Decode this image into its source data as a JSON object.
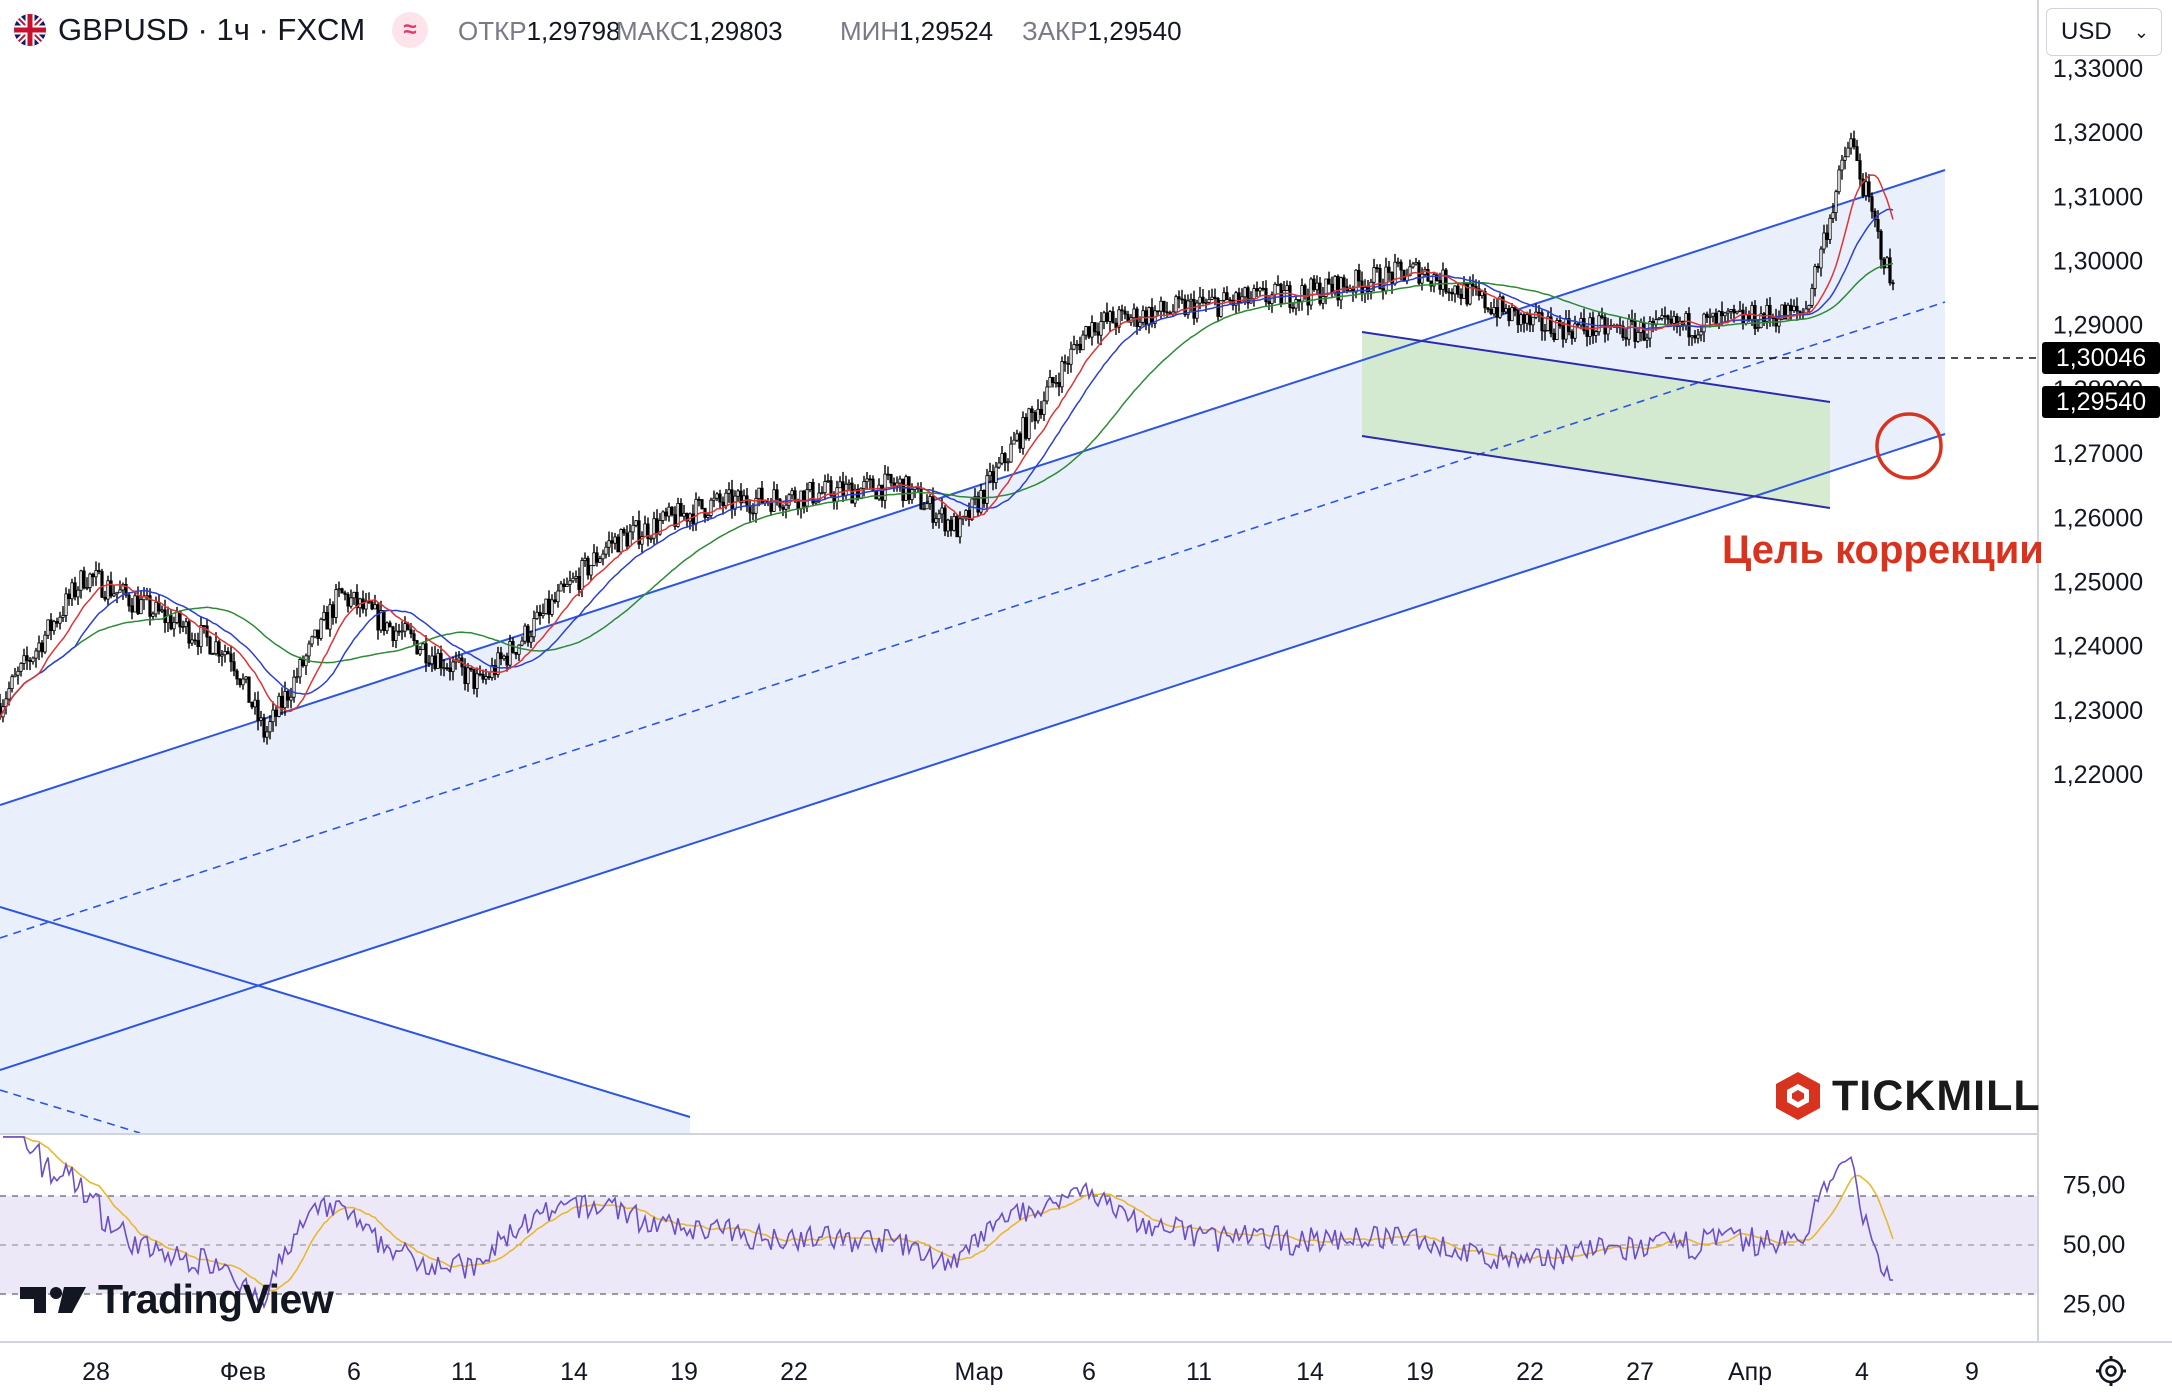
{
  "header": {
    "symbol": "GBPUSD · 1ч · FXCM",
    "ohlc": [
      {
        "key": "ОТКР",
        "value": "1,29798"
      },
      {
        "key": "МАКС",
        "value": "1,29803"
      },
      {
        "key": "МИН",
        "value": "1,29524"
      },
      {
        "key": "ЗАКР",
        "value": "1,29540"
      }
    ],
    "currency": "USD"
  },
  "annotation": "Цель коррекции",
  "logos": {
    "broker": "TICKMILL",
    "platform": "TradingView"
  },
  "colors": {
    "candles": "#000000",
    "ma_fast": "#e03434",
    "ma_mid": "#2a3fd6",
    "ma_slow": "#2e8b35",
    "channel": "#2c55e0",
    "channel_fill": "#e9effb",
    "flag_fill": "#cfe8c8",
    "rsi": "#6a4fc8",
    "rsi_signal": "#e8b830",
    "rsi_band": "#ece8f7",
    "accent_red": "#d8331f"
  },
  "chart_data": [
    {
      "type": "candlestick",
      "symbol": "GBPUSD",
      "timeframe": "1h",
      "y_axis_ticks": [
        "1,33000",
        "1,32000",
        "1,31000",
        "1,30000",
        "1,29000",
        "1,28000",
        "1,27000",
        "1,26000",
        "1,25000",
        "1,24000",
        "1,23000",
        "1,22000"
      ],
      "ylim": [
        1.212,
        1.335
      ],
      "x_axis_ticks": [
        "28",
        "Фев",
        "6",
        "11",
        "14",
        "19",
        "22",
        "Мар",
        "6",
        "11",
        "14",
        "19",
        "22",
        "27",
        "Апр",
        "4",
        "9"
      ],
      "price_labels": [
        {
          "value": 1.30046,
          "text": "1,30046"
        },
        {
          "value": 1.2954,
          "text": "1,29540"
        }
      ],
      "approx_path": [
        {
          "x": "28",
          "y": 1.231
        },
        {
          "x": "28",
          "y": 1.251
        },
        {
          "x": "Фев",
          "y": 1.239
        },
        {
          "x": "Фев",
          "y": 1.226
        },
        {
          "x": "6",
          "y": 1.248
        },
        {
          "x": "11",
          "y": 1.234
        },
        {
          "x": "14",
          "y": 1.256
        },
        {
          "x": "19",
          "y": 1.262
        },
        {
          "x": "22",
          "y": 1.265
        },
        {
          "x": "Мар",
          "y": 1.258
        },
        {
          "x": "6",
          "y": 1.29
        },
        {
          "x": "11",
          "y": 1.293
        },
        {
          "x": "14",
          "y": 1.295
        },
        {
          "x": "19",
          "y": 1.2985
        },
        {
          "x": "22",
          "y": 1.29
        },
        {
          "x": "27",
          "y": 1.289
        },
        {
          "x": "Апр",
          "y": 1.292
        },
        {
          "x": "4",
          "y": 1.319
        },
        {
          "x": "4",
          "y": 1.2954
        }
      ],
      "overlays": [
        "ascending channel",
        "descending flag channel",
        "moving averages"
      ]
    },
    {
      "type": "line",
      "indicator": "RSI",
      "y_axis_ticks": [
        "75,00",
        "50,00",
        "25,00"
      ],
      "ylim": [
        0,
        100
      ],
      "band": [
        30,
        70
      ],
      "series": []
    }
  ]
}
